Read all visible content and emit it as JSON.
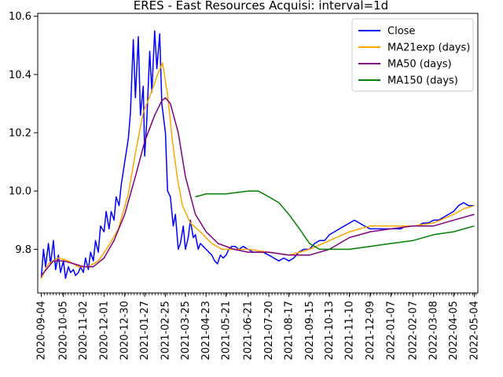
{
  "chart_data": {
    "type": "line",
    "title": "ERES - East Resources Acquisi: interval=1d",
    "xlabel": "",
    "ylabel": "",
    "x_ticks": [
      "2020-09-04",
      "2020-10-05",
      "2020-11-02",
      "2020-12-01",
      "2020-12-30",
      "2021-01-27",
      "2021-02-25",
      "2021-03-25",
      "2021-04-23",
      "2021-05-21",
      "2021-06-21",
      "2021-07-20",
      "2021-08-17",
      "2021-09-15",
      "2021-10-13",
      "2021-11-10",
      "2021-12-09",
      "2022-01-07",
      "2022-02-07",
      "2022-03-08",
      "2022-04-05",
      "2022-05-04"
    ],
    "y_ticks": [
      "9.8",
      "10.0",
      "10.2",
      "10.4",
      "10.6"
    ],
    "xlim": [
      "2020-08-30",
      "2022-05-09"
    ],
    "ylim": [
      9.65,
      10.61
    ],
    "grid": false,
    "legend_position": "top-right",
    "series": [
      {
        "name": "Close",
        "color": "#0000ff",
        "points": [
          [
            "2020-09-04",
            9.7
          ],
          [
            "2020-09-07",
            9.8
          ],
          [
            "2020-09-10",
            9.74
          ],
          [
            "2020-09-14",
            9.82
          ],
          [
            "2020-09-17",
            9.75
          ],
          [
            "2020-09-21",
            9.83
          ],
          [
            "2020-09-24",
            9.73
          ],
          [
            "2020-09-28",
            9.78
          ],
          [
            "2020-10-01",
            9.72
          ],
          [
            "2020-10-05",
            9.76
          ],
          [
            "2020-10-08",
            9.7
          ],
          [
            "2020-10-12",
            9.74
          ],
          [
            "2020-10-15",
            9.72
          ],
          [
            "2020-10-19",
            9.73
          ],
          [
            "2020-10-22",
            9.71
          ],
          [
            "2020-10-26",
            9.72
          ],
          [
            "2020-10-29",
            9.74
          ],
          [
            "2020-11-02",
            9.72
          ],
          [
            "2020-11-05",
            9.77
          ],
          [
            "2020-11-09",
            9.73
          ],
          [
            "2020-11-12",
            9.79
          ],
          [
            "2020-11-16",
            9.76
          ],
          [
            "2020-11-19",
            9.83
          ],
          [
            "2020-11-23",
            9.79
          ],
          [
            "2020-11-26",
            9.88
          ],
          [
            "2020-12-01",
            9.86
          ],
          [
            "2020-12-04",
            9.93
          ],
          [
            "2020-12-08",
            9.87
          ],
          [
            "2020-12-11",
            9.93
          ],
          [
            "2020-12-15",
            9.9
          ],
          [
            "2020-12-18",
            9.98
          ],
          [
            "2020-12-22",
            9.95
          ],
          [
            "2020-12-25",
            10.02
          ],
          [
            "2020-12-30",
            10.1
          ],
          [
            "2021-01-04",
            10.18
          ],
          [
            "2021-01-07",
            10.27
          ],
          [
            "2021-01-11",
            10.52
          ],
          [
            "2021-01-14",
            10.32
          ],
          [
            "2021-01-18",
            10.53
          ],
          [
            "2021-01-21",
            10.26
          ],
          [
            "2021-01-25",
            10.36
          ],
          [
            "2021-01-27",
            10.12
          ],
          [
            "2021-01-30",
            10.25
          ],
          [
            "2021-02-03",
            10.48
          ],
          [
            "2021-02-06",
            10.34
          ],
          [
            "2021-02-10",
            10.55
          ],
          [
            "2021-02-13",
            10.42
          ],
          [
            "2021-02-17",
            10.54
          ],
          [
            "2021-02-20",
            10.3
          ],
          [
            "2021-02-25",
            10.2
          ],
          [
            "2021-02-28",
            10.0
          ],
          [
            "2021-03-04",
            9.98
          ],
          [
            "2021-03-08",
            9.88
          ],
          [
            "2021-03-11",
            9.92
          ],
          [
            "2021-03-15",
            9.8
          ],
          [
            "2021-03-18",
            9.82
          ],
          [
            "2021-03-22",
            9.88
          ],
          [
            "2021-03-25",
            9.8
          ],
          [
            "2021-03-29",
            9.84
          ],
          [
            "2021-04-01",
            9.9
          ],
          [
            "2021-04-05",
            9.84
          ],
          [
            "2021-04-08",
            9.85
          ],
          [
            "2021-04-12",
            9.8
          ],
          [
            "2021-04-15",
            9.82
          ],
          [
            "2021-04-19",
            9.81
          ],
          [
            "2021-04-23",
            9.8
          ],
          [
            "2021-04-27",
            9.79
          ],
          [
            "2021-05-01",
            9.78
          ],
          [
            "2021-05-05",
            9.76
          ],
          [
            "2021-05-09",
            9.75
          ],
          [
            "2021-05-13",
            9.78
          ],
          [
            "2021-05-17",
            9.77
          ],
          [
            "2021-05-21",
            9.78
          ],
          [
            "2021-05-25",
            9.8
          ],
          [
            "2021-05-29",
            9.81
          ],
          [
            "2021-06-03",
            9.81
          ],
          [
            "2021-06-08",
            9.8
          ],
          [
            "2021-06-14",
            9.81
          ],
          [
            "2021-06-21",
            9.8
          ],
          [
            "2021-06-28",
            9.79
          ],
          [
            "2021-07-05",
            9.79
          ],
          [
            "2021-07-12",
            9.79
          ],
          [
            "2021-07-20",
            9.78
          ],
          [
            "2021-07-27",
            9.77
          ],
          [
            "2021-08-03",
            9.76
          ],
          [
            "2021-08-10",
            9.77
          ],
          [
            "2021-08-17",
            9.76
          ],
          [
            "2021-08-24",
            9.77
          ],
          [
            "2021-08-31",
            9.79
          ],
          [
            "2021-09-07",
            9.8
          ],
          [
            "2021-09-15",
            9.8
          ],
          [
            "2021-09-22",
            9.82
          ],
          [
            "2021-09-29",
            9.83
          ],
          [
            "2021-10-06",
            9.83
          ],
          [
            "2021-10-13",
            9.85
          ],
          [
            "2021-10-20",
            9.86
          ],
          [
            "2021-10-27",
            9.87
          ],
          [
            "2021-11-03",
            9.88
          ],
          [
            "2021-11-10",
            9.89
          ],
          [
            "2021-11-17",
            9.9
          ],
          [
            "2021-11-24",
            9.89
          ],
          [
            "2021-12-01",
            9.88
          ],
          [
            "2021-12-09",
            9.87
          ],
          [
            "2021-12-16",
            9.87
          ],
          [
            "2021-12-23",
            9.87
          ],
          [
            "2021-12-30",
            9.87
          ],
          [
            "2022-01-07",
            9.87
          ],
          [
            "2022-01-14",
            9.87
          ],
          [
            "2022-01-21",
            9.87
          ],
          [
            "2022-01-28",
            9.88
          ],
          [
            "2022-02-07",
            9.88
          ],
          [
            "2022-02-14",
            9.88
          ],
          [
            "2022-02-21",
            9.89
          ],
          [
            "2022-02-28",
            9.89
          ],
          [
            "2022-03-08",
            9.9
          ],
          [
            "2022-03-15",
            9.9
          ],
          [
            "2022-03-22",
            9.91
          ],
          [
            "2022-03-29",
            9.92
          ],
          [
            "2022-04-05",
            9.93
          ],
          [
            "2022-04-12",
            9.95
          ],
          [
            "2022-04-19",
            9.96
          ],
          [
            "2022-04-26",
            9.95
          ],
          [
            "2022-05-04",
            9.95
          ]
        ]
      },
      {
        "name": "MA21exp (days)",
        "color": "#ffa500",
        "points": [
          [
            "2020-09-04",
            9.7
          ],
          [
            "2020-09-14",
            9.75
          ],
          [
            "2020-09-28",
            9.77
          ],
          [
            "2020-10-12",
            9.76
          ],
          [
            "2020-10-26",
            9.74
          ],
          [
            "2020-11-09",
            9.74
          ],
          [
            "2020-11-23",
            9.76
          ],
          [
            "2020-12-07",
            9.81
          ],
          [
            "2020-12-21",
            9.87
          ],
          [
            "2021-01-04",
            9.99
          ],
          [
            "2021-01-14",
            10.13
          ],
          [
            "2021-01-25",
            10.27
          ],
          [
            "2021-02-04",
            10.33
          ],
          [
            "2021-02-14",
            10.4
          ],
          [
            "2021-02-21",
            10.44
          ],
          [
            "2021-02-28",
            10.33
          ],
          [
            "2021-03-07",
            10.17
          ],
          [
            "2021-03-14",
            10.04
          ],
          [
            "2021-03-21",
            9.95
          ],
          [
            "2021-04-01",
            9.89
          ],
          [
            "2021-04-15",
            9.86
          ],
          [
            "2021-05-01",
            9.82
          ],
          [
            "2021-05-15",
            9.8
          ],
          [
            "2021-06-01",
            9.8
          ],
          [
            "2021-06-21",
            9.8
          ],
          [
            "2021-07-20",
            9.79
          ],
          [
            "2021-08-17",
            9.78
          ],
          [
            "2021-09-01",
            9.79
          ],
          [
            "2021-09-15",
            9.8
          ],
          [
            "2021-10-13",
            9.83
          ],
          [
            "2021-11-10",
            9.86
          ],
          [
            "2021-12-09",
            9.88
          ],
          [
            "2022-01-07",
            9.88
          ],
          [
            "2022-02-07",
            9.88
          ],
          [
            "2022-03-08",
            9.89
          ],
          [
            "2022-04-05",
            9.92
          ],
          [
            "2022-04-20",
            9.94
          ],
          [
            "2022-05-04",
            9.95
          ]
        ]
      },
      {
        "name": "MA50 (days)",
        "color": "#800080",
        "points": [
          [
            "2020-09-04",
            9.71
          ],
          [
            "2020-09-21",
            9.76
          ],
          [
            "2020-10-05",
            9.76
          ],
          [
            "2020-10-20",
            9.75
          ],
          [
            "2020-11-02",
            9.74
          ],
          [
            "2020-11-16",
            9.74
          ],
          [
            "2020-12-01",
            9.77
          ],
          [
            "2020-12-15",
            9.83
          ],
          [
            "2020-12-30",
            9.92
          ],
          [
            "2021-01-14",
            10.05
          ],
          [
            "2021-01-27",
            10.17
          ],
          [
            "2021-02-10",
            10.26
          ],
          [
            "2021-02-20",
            10.31
          ],
          [
            "2021-02-25",
            10.32
          ],
          [
            "2021-03-04",
            10.3
          ],
          [
            "2021-03-15",
            10.2
          ],
          [
            "2021-03-25",
            10.05
          ],
          [
            "2021-04-08",
            9.92
          ],
          [
            "2021-04-23",
            9.86
          ],
          [
            "2021-05-10",
            9.82
          ],
          [
            "2021-06-01",
            9.8
          ],
          [
            "2021-06-21",
            9.79
          ],
          [
            "2021-07-20",
            9.79
          ],
          [
            "2021-08-17",
            9.78
          ],
          [
            "2021-09-15",
            9.78
          ],
          [
            "2021-10-13",
            9.8
          ],
          [
            "2021-11-10",
            9.84
          ],
          [
            "2021-12-09",
            9.86
          ],
          [
            "2022-01-07",
            9.87
          ],
          [
            "2022-02-07",
            9.88
          ],
          [
            "2022-03-08",
            9.88
          ],
          [
            "2022-04-05",
            9.9
          ],
          [
            "2022-05-04",
            9.92
          ]
        ]
      },
      {
        "name": "MA150 (days)",
        "color": "#008000",
        "points": [
          [
            "2021-04-08",
            9.98
          ],
          [
            "2021-04-23",
            9.99
          ],
          [
            "2021-05-21",
            9.99
          ],
          [
            "2021-06-21",
            10.0
          ],
          [
            "2021-07-05",
            10.0
          ],
          [
            "2021-07-20",
            9.98
          ],
          [
            "2021-08-03",
            9.96
          ],
          [
            "2021-08-17",
            9.92
          ],
          [
            "2021-09-01",
            9.87
          ],
          [
            "2021-09-15",
            9.82
          ],
          [
            "2021-09-29",
            9.8
          ],
          [
            "2021-10-13",
            9.8
          ],
          [
            "2021-11-10",
            9.8
          ],
          [
            "2021-12-09",
            9.81
          ],
          [
            "2022-01-07",
            9.82
          ],
          [
            "2022-02-07",
            9.83
          ],
          [
            "2022-03-08",
            9.85
          ],
          [
            "2022-04-05",
            9.86
          ],
          [
            "2022-05-04",
            9.88
          ]
        ]
      }
    ]
  }
}
